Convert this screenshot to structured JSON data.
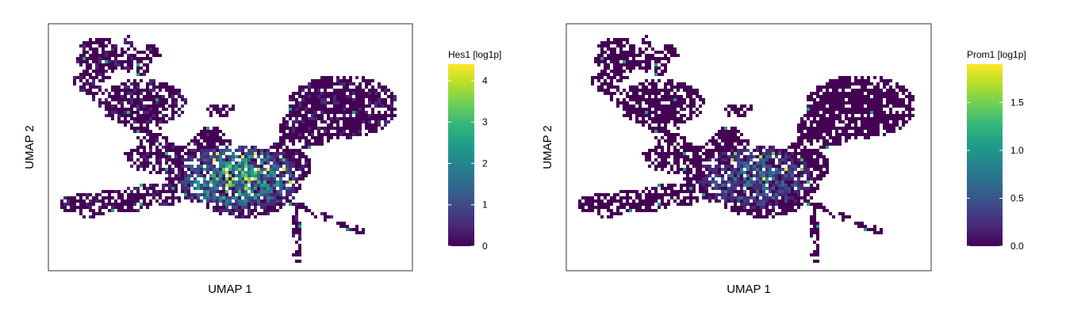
{
  "chart_data": [
    {
      "type": "scatter",
      "title": "",
      "xlabel": "UMAP 1",
      "ylabel": "UMAP 2",
      "color_label": "Hes1 [log1p]",
      "color_ticks": [
        "0",
        "1",
        "2",
        "3",
        "4"
      ],
      "color_tick_values": [
        0,
        1,
        2,
        3,
        4
      ],
      "color_range": [
        0,
        4.4
      ],
      "colormap": "viridis",
      "grid": false,
      "axis_ticks": false,
      "legend_position": "right"
    },
    {
      "type": "scatter",
      "title": "",
      "xlabel": "UMAP 1",
      "ylabel": "UMAP 2",
      "color_label": "Prom1 [log1p]",
      "color_ticks": [
        "0.0",
        "0.5",
        "1.0",
        "1.5"
      ],
      "color_tick_values": [
        0,
        0.5,
        1.0,
        1.5
      ],
      "color_range": [
        0,
        1.9
      ],
      "colormap": "viridis",
      "grid": false,
      "axis_ticks": false,
      "legend_position": "right"
    }
  ],
  "colors": {
    "viridis": [
      "#440154",
      "#482878",
      "#3e4989",
      "#31688e",
      "#26828e",
      "#1f9e89",
      "#35b779",
      "#6ece58",
      "#b5de2b",
      "#fde725"
    ],
    "panel_border": "#333333"
  }
}
